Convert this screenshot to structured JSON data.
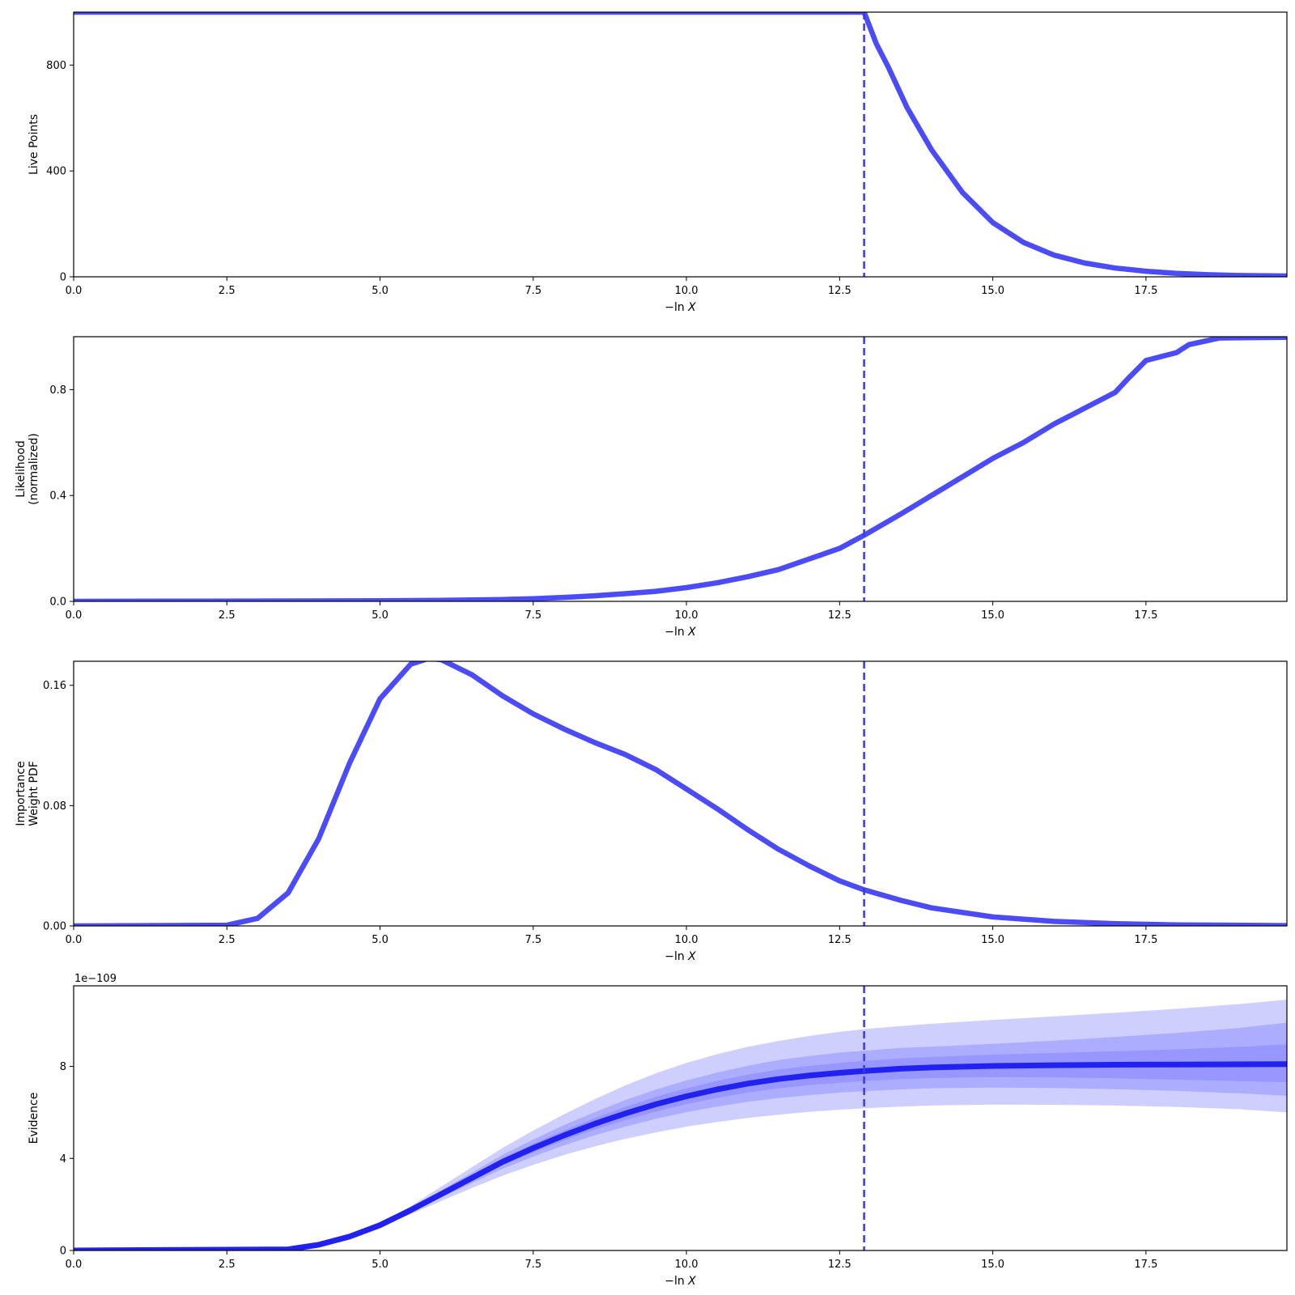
{
  "colors": {
    "line": "#4b4bf7",
    "evidence_line": "#2222f0",
    "band": "#6b6bff",
    "marker": "#3a3ae6",
    "axis": "#000000"
  },
  "x_axis": {
    "label_prefix": "−ln ",
    "label_var": "X",
    "ticks": [
      "0.0",
      "2.5",
      "5.0",
      "7.5",
      "10.0",
      "12.5",
      "15.0",
      "17.5"
    ],
    "tick_values": [
      0,
      2.5,
      5,
      7.5,
      10,
      12.5,
      15,
      17.5
    ],
    "range": [
      0,
      19.8
    ]
  },
  "marker_x": 12.9,
  "chart_data": [
    {
      "type": "line",
      "id": "live-points",
      "ylabel": [
        "Live Points"
      ],
      "xlim": [
        0,
        19.8
      ],
      "ylim": [
        0,
        1000
      ],
      "y_ticks": [
        "0",
        "400",
        "800"
      ],
      "y_tick_values": [
        0,
        400,
        800
      ],
      "x": [
        0,
        12.9,
        13.1,
        13.3,
        13.6,
        14.0,
        14.5,
        15.0,
        15.5,
        16.0,
        16.5,
        17.0,
        17.5,
        18.0,
        18.5,
        19.0,
        19.8
      ],
      "y": [
        1000,
        1000,
        880,
        790,
        640,
        480,
        320,
        205,
        130,
        82,
        52,
        33,
        21,
        13,
        8,
        5,
        3
      ]
    },
    {
      "type": "line",
      "id": "likelihood",
      "ylabel": [
        "Likelihood",
        "(normalized)"
      ],
      "xlim": [
        0,
        19.8
      ],
      "ylim": [
        0,
        1.0
      ],
      "y_ticks": [
        "0.0",
        "0.4",
        "0.8"
      ],
      "y_tick_values": [
        0,
        0.4,
        0.8
      ],
      "x": [
        0,
        5,
        6,
        7,
        7.5,
        8,
        8.5,
        9,
        9.5,
        10,
        10.5,
        11,
        11.5,
        12,
        12.5,
        12.9,
        13.5,
        14,
        14.5,
        15,
        15.5,
        16,
        16.5,
        17,
        17.2,
        17.5,
        18,
        18.2,
        18.7,
        19.8
      ],
      "y": [
        0,
        0.002,
        0.004,
        0.007,
        0.01,
        0.015,
        0.021,
        0.029,
        0.038,
        0.052,
        0.07,
        0.093,
        0.12,
        0.16,
        0.2,
        0.25,
        0.33,
        0.4,
        0.47,
        0.54,
        0.6,
        0.67,
        0.73,
        0.79,
        0.84,
        0.91,
        0.94,
        0.97,
        0.995,
        0.998
      ]
    },
    {
      "type": "line",
      "id": "importance-weight",
      "ylabel": [
        "Importance",
        "Weight PDF"
      ],
      "xlim": [
        0,
        19.8
      ],
      "ylim": [
        0,
        0.176
      ],
      "y_ticks": [
        "0.00",
        "0.08",
        "0.16"
      ],
      "y_tick_values": [
        0,
        0.08,
        0.16
      ],
      "x": [
        0,
        2.5,
        3.0,
        3.5,
        4.0,
        4.5,
        5.0,
        5.5,
        5.8,
        6.0,
        6.5,
        7.0,
        7.5,
        8.0,
        8.5,
        9.0,
        9.5,
        10.0,
        10.5,
        11.0,
        11.5,
        12.0,
        12.5,
        12.9,
        13.5,
        14.0,
        15.0,
        16.0,
        17.0,
        18.0,
        19.8
      ],
      "y": [
        0,
        0.0005,
        0.005,
        0.022,
        0.058,
        0.108,
        0.151,
        0.174,
        0.178,
        0.177,
        0.167,
        0.153,
        0.141,
        0.131,
        0.122,
        0.114,
        0.104,
        0.091,
        0.078,
        0.064,
        0.051,
        0.04,
        0.03,
        0.024,
        0.017,
        0.012,
        0.006,
        0.003,
        0.0015,
        0.0007,
        0.0002
      ]
    },
    {
      "type": "area",
      "id": "evidence",
      "ylabel": [
        "Evidence"
      ],
      "offset_text": "1e−109",
      "xlim": [
        0,
        19.8
      ],
      "ylim": [
        0,
        11.5
      ],
      "y_ticks": [
        "0",
        "4",
        "8"
      ],
      "y_tick_values": [
        0,
        4,
        8
      ],
      "x": [
        0,
        3.5,
        4.0,
        4.5,
        5.0,
        5.5,
        6.0,
        6.5,
        7.0,
        7.5,
        8.0,
        8.5,
        9.0,
        9.5,
        10.0,
        10.5,
        11.0,
        11.5,
        12.0,
        12.5,
        12.9,
        13.5,
        14.0,
        15.0,
        16.0,
        17.0,
        18.0,
        19.0,
        19.8
      ],
      "median": [
        0,
        0.05,
        0.25,
        0.6,
        1.1,
        1.75,
        2.45,
        3.15,
        3.85,
        4.45,
        5.0,
        5.5,
        5.95,
        6.35,
        6.7,
        7.0,
        7.25,
        7.45,
        7.6,
        7.72,
        7.8,
        7.9,
        7.95,
        8.02,
        8.05,
        8.07,
        8.08,
        8.09,
        8.1
      ],
      "bands": [
        {
          "lower": [
            0,
            0.05,
            0.24,
            0.57,
            1.03,
            1.58,
            2.15,
            2.72,
            3.25,
            3.72,
            4.15,
            4.52,
            4.85,
            5.13,
            5.38,
            5.58,
            5.76,
            5.9,
            6.02,
            6.12,
            6.18,
            6.25,
            6.3,
            6.34,
            6.33,
            6.3,
            6.24,
            6.14,
            6.0
          ],
          "upper": [
            0,
            0.05,
            0.26,
            0.63,
            1.17,
            1.92,
            2.78,
            3.62,
            4.46,
            5.21,
            5.92,
            6.57,
            7.17,
            7.7,
            8.15,
            8.53,
            8.85,
            9.1,
            9.32,
            9.5,
            9.62,
            9.75,
            9.85,
            10.02,
            10.17,
            10.33,
            10.5,
            10.7,
            10.9
          ]
        },
        {
          "lower": [
            0,
            0.05,
            0.245,
            0.585,
            1.06,
            1.66,
            2.3,
            2.93,
            3.55,
            4.08,
            4.57,
            5.0,
            5.38,
            5.72,
            6.01,
            6.25,
            6.46,
            6.62,
            6.75,
            6.86,
            6.92,
            7.0,
            7.05,
            7.08,
            7.06,
            7.01,
            6.93,
            6.83,
            6.72
          ],
          "upper": [
            0,
            0.05,
            0.255,
            0.615,
            1.14,
            1.84,
            2.62,
            3.38,
            4.16,
            4.82,
            5.45,
            6.01,
            6.53,
            6.99,
            7.39,
            7.73,
            8.03,
            8.27,
            8.45,
            8.6,
            8.68,
            8.8,
            8.86,
            8.98,
            9.12,
            9.28,
            9.45,
            9.66,
            9.9
          ]
        },
        {
          "lower": [
            0,
            0.05,
            0.248,
            0.594,
            1.08,
            1.7,
            2.38,
            3.04,
            3.7,
            4.26,
            4.78,
            5.25,
            5.66,
            6.03,
            6.36,
            6.63,
            6.86,
            7.04,
            7.18,
            7.29,
            7.36,
            7.45,
            7.49,
            7.53,
            7.52,
            7.48,
            7.42,
            7.36,
            7.32
          ],
          "upper": [
            0,
            0.05,
            0.252,
            0.606,
            1.12,
            1.8,
            2.52,
            3.26,
            4.0,
            4.64,
            5.22,
            5.75,
            6.24,
            6.67,
            7.04,
            7.37,
            7.64,
            7.86,
            8.02,
            8.15,
            8.24,
            8.35,
            8.41,
            8.51,
            8.58,
            8.66,
            8.74,
            8.84,
            8.96
          ]
        }
      ]
    }
  ]
}
